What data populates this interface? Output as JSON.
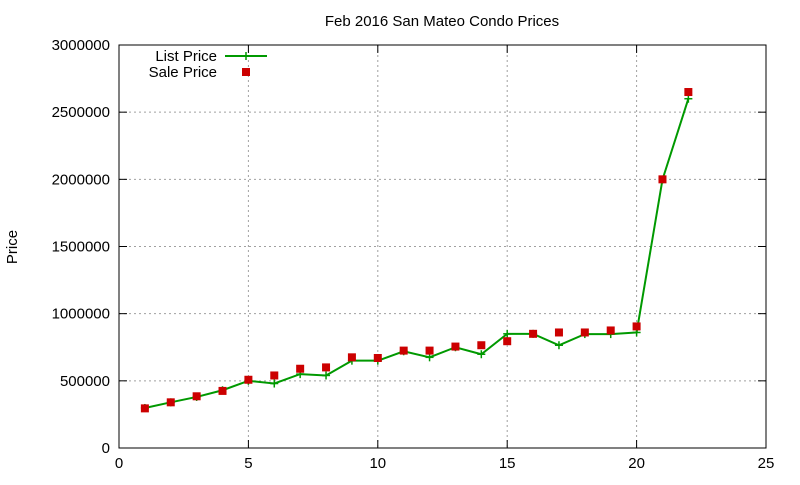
{
  "chart_data": {
    "type": "line",
    "title": "Feb 2016 San Mateo Condo Prices",
    "xlabel": "",
    "ylabel": "Price",
    "xlim": [
      0,
      25
    ],
    "ylim": [
      0,
      3000000
    ],
    "xticks": [
      0,
      5,
      10,
      15,
      20,
      25
    ],
    "yticks": [
      0,
      500000,
      1000000,
      1500000,
      2000000,
      2500000,
      3000000
    ],
    "xtick_labels": [
      "0",
      "5",
      "10",
      "15",
      "20",
      "25"
    ],
    "ytick_labels": [
      "0",
      "500000",
      "1000000",
      "1500000",
      "2000000",
      "2500000",
      "3000000"
    ],
    "grid": true,
    "legend_position": "top-left",
    "series": [
      {
        "name": "List Price",
        "style": "line+cross",
        "color": "#009900",
        "x": [
          1,
          2,
          3,
          4,
          5,
          6,
          7,
          8,
          9,
          10,
          11,
          12,
          13,
          14,
          15,
          16,
          17,
          18,
          19,
          20,
          21,
          22
        ],
        "values": [
          298000,
          340000,
          380000,
          430000,
          500000,
          480000,
          550000,
          540000,
          650000,
          650000,
          720000,
          675000,
          750000,
          698000,
          850000,
          850000,
          765000,
          848000,
          848000,
          860000,
          1998000,
          2600000
        ]
      },
      {
        "name": "Sale Price",
        "style": "square",
        "color": "#cc0000",
        "x": [
          1,
          2,
          3,
          4,
          5,
          6,
          7,
          8,
          9,
          10,
          11,
          12,
          13,
          14,
          15,
          16,
          17,
          18,
          19,
          20,
          21,
          22
        ],
        "values": [
          295000,
          340000,
          385000,
          425000,
          508000,
          540000,
          590000,
          600000,
          675000,
          670000,
          725000,
          725000,
          755000,
          765000,
          795000,
          850000,
          860000,
          860000,
          875000,
          905000,
          2000000,
          2650000
        ]
      }
    ]
  }
}
